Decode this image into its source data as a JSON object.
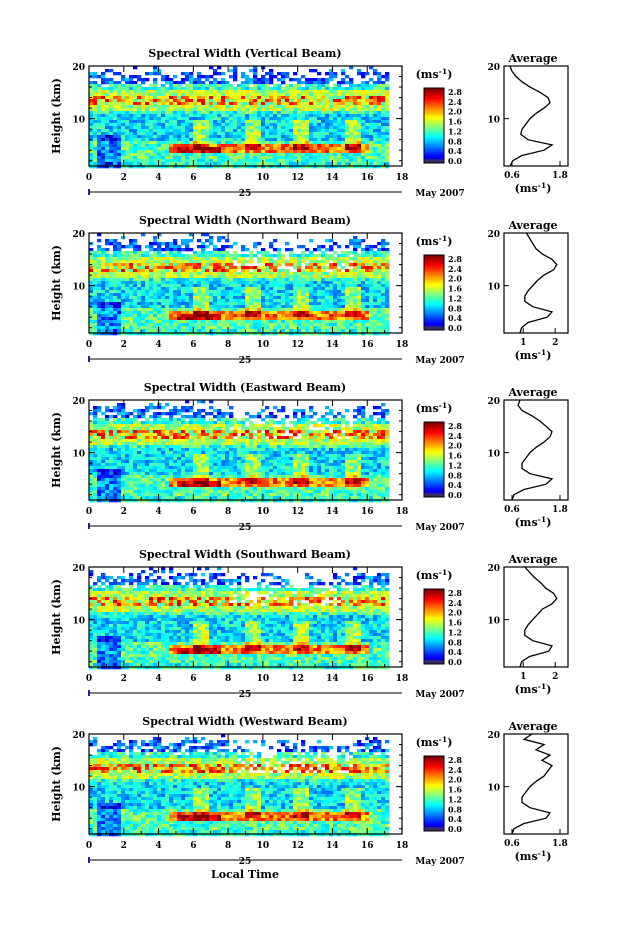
{
  "chart_data": [
    {
      "type": "heatmap",
      "title": "Spectral Width (Vertical Beam)",
      "ylabel": "Height (km)",
      "xlim": [
        0,
        18
      ],
      "ylim": [
        1,
        20
      ],
      "x_ticks": [
        "0",
        "2",
        "4",
        "6",
        "8",
        "10",
        "12",
        "14",
        "16",
        "18"
      ],
      "y_ticks": [
        "10",
        "20"
      ],
      "day_label": "25",
      "date_label": "May 2007",
      "colorbar": {
        "unit": "(ms-1)",
        "ticks": [
          "2.8",
          "2.4",
          "2.0",
          "1.6",
          "1.2",
          "0.8",
          "0.4",
          "0.0"
        ]
      },
      "average": {
        "title": "Average",
        "xlabel": "(ms-1)",
        "x_ticks": [
          "0.6",
          "1.8"
        ],
        "xlim": [
          0.4,
          2.0
        ],
        "profile": [
          [
            1,
            0.55
          ],
          [
            2,
            0.62
          ],
          [
            3,
            0.85
          ],
          [
            4,
            1.4
          ],
          [
            5,
            1.6
          ],
          [
            6,
            1.0
          ],
          [
            7,
            0.82
          ],
          [
            8,
            0.85
          ],
          [
            9,
            0.95
          ],
          [
            10,
            1.05
          ],
          [
            11,
            1.2
          ],
          [
            12,
            1.4
          ],
          [
            13,
            1.55
          ],
          [
            14,
            1.5
          ],
          [
            15,
            1.3
          ],
          [
            16,
            1.05
          ],
          [
            17,
            0.85
          ],
          [
            18,
            0.7
          ],
          [
            19,
            0.6
          ],
          [
            20,
            0.55
          ]
        ]
      }
    },
    {
      "type": "heatmap",
      "title": "Spectral Width (Northward Beam)",
      "ylabel": "Height (km)",
      "xlim": [
        0,
        18
      ],
      "ylim": [
        1,
        20
      ],
      "x_ticks": [
        "0",
        "2",
        "4",
        "6",
        "8",
        "10",
        "12",
        "14",
        "16",
        "18"
      ],
      "y_ticks": [
        "10",
        "20"
      ],
      "day_label": "25",
      "date_label": "May 2007",
      "colorbar": {
        "unit": "(ms-1)",
        "ticks": [
          "2.8",
          "2.4",
          "2.0",
          "1.6",
          "1.2",
          "0.8",
          "0.4",
          "0.0"
        ]
      },
      "average": {
        "title": "Average",
        "xlabel": "(ms-1)",
        "x_ticks": [
          "1",
          "2"
        ],
        "xlim": [
          0.4,
          2.4
        ],
        "profile": [
          [
            1,
            0.9
          ],
          [
            2,
            0.95
          ],
          [
            3,
            1.15
          ],
          [
            4,
            1.75
          ],
          [
            5,
            1.9
          ],
          [
            6,
            1.3
          ],
          [
            7,
            1.05
          ],
          [
            8,
            1.05
          ],
          [
            9,
            1.15
          ],
          [
            10,
            1.3
          ],
          [
            11,
            1.45
          ],
          [
            12,
            1.65
          ],
          [
            13,
            1.95
          ],
          [
            14,
            2.05
          ],
          [
            15,
            1.9
          ],
          [
            16,
            1.6
          ],
          [
            17,
            1.4
          ],
          [
            18,
            1.3
          ],
          [
            19,
            1.2
          ],
          [
            20,
            1.1
          ]
        ]
      }
    },
    {
      "type": "heatmap",
      "title": "Spectral Width (Eastward Beam)",
      "ylabel": "Height (km)",
      "xlim": [
        0,
        18
      ],
      "ylim": [
        1,
        20
      ],
      "x_ticks": [
        "0",
        "2",
        "4",
        "6",
        "8",
        "10",
        "12",
        "14",
        "16",
        "18"
      ],
      "y_ticks": [
        "10",
        "20"
      ],
      "day_label": "25",
      "date_label": "May 2007",
      "colorbar": {
        "unit": "(ms-1)",
        "ticks": [
          "2.8",
          "2.4",
          "2.0",
          "1.6",
          "1.2",
          "0.8",
          "0.4",
          "0.0"
        ]
      },
      "average": {
        "title": "Average",
        "xlabel": "(ms-1)",
        "x_ticks": [
          "0.6",
          "1.8"
        ],
        "xlim": [
          0.4,
          2.0
        ],
        "profile": [
          [
            1,
            0.6
          ],
          [
            2,
            0.65
          ],
          [
            3,
            0.9
          ],
          [
            4,
            1.45
          ],
          [
            5,
            1.6
          ],
          [
            6,
            1.05
          ],
          [
            7,
            0.85
          ],
          [
            8,
            0.85
          ],
          [
            9,
            0.95
          ],
          [
            10,
            1.05
          ],
          [
            11,
            1.2
          ],
          [
            12,
            1.4
          ],
          [
            13,
            1.55
          ],
          [
            14,
            1.6
          ],
          [
            15,
            1.45
          ],
          [
            16,
            1.3
          ],
          [
            17,
            1.1
          ],
          [
            18,
            0.85
          ],
          [
            19,
            0.75
          ],
          [
            20,
            0.8
          ]
        ]
      }
    },
    {
      "type": "heatmap",
      "title": "Spectral Width (Southward Beam)",
      "ylabel": "Height (km)",
      "xlim": [
        0,
        18
      ],
      "ylim": [
        1,
        20
      ],
      "x_ticks": [
        "0",
        "2",
        "4",
        "6",
        "8",
        "10",
        "12",
        "14",
        "16",
        "18"
      ],
      "y_ticks": [
        "10",
        "20"
      ],
      "day_label": "25",
      "date_label": "May 2007",
      "colorbar": {
        "unit": "(ms-1)",
        "ticks": [
          "2.8",
          "2.4",
          "2.0",
          "1.6",
          "1.2",
          "0.8",
          "0.4",
          "0.0"
        ]
      },
      "average": {
        "title": "Average",
        "xlabel": "(ms-1)",
        "x_ticks": [
          "1",
          "2"
        ],
        "xlim": [
          0.4,
          2.4
        ],
        "profile": [
          [
            1,
            0.9
          ],
          [
            2,
            0.95
          ],
          [
            3,
            1.2
          ],
          [
            4,
            1.8
          ],
          [
            5,
            1.9
          ],
          [
            6,
            1.3
          ],
          [
            7,
            1.05
          ],
          [
            8,
            1.05
          ],
          [
            9,
            1.15
          ],
          [
            10,
            1.3
          ],
          [
            11,
            1.45
          ],
          [
            12,
            1.6
          ],
          [
            13,
            1.9
          ],
          [
            14,
            2.05
          ],
          [
            15,
            1.95
          ],
          [
            16,
            1.7
          ],
          [
            17,
            1.55
          ],
          [
            18,
            1.35
          ],
          [
            19,
            1.2
          ],
          [
            20,
            1.05
          ]
        ]
      }
    },
    {
      "type": "heatmap",
      "title": "Spectral Width (Westward Beam)",
      "ylabel": "Height (km)",
      "xlim": [
        0,
        18
      ],
      "ylim": [
        1,
        20
      ],
      "x_ticks": [
        "0",
        "2",
        "4",
        "6",
        "8",
        "10",
        "12",
        "14",
        "16",
        "18"
      ],
      "y_ticks": [
        "10",
        "20"
      ],
      "day_label": "25",
      "date_label": "May 2007",
      "xlabel": "Local Time",
      "colorbar": {
        "unit": "(ms-1)",
        "ticks": [
          "2.8",
          "2.4",
          "2.0",
          "1.6",
          "1.2",
          "0.8",
          "0.4",
          "0.0"
        ]
      },
      "average": {
        "title": "Average",
        "xlabel": "(ms-1)",
        "x_ticks": [
          "0.6",
          "1.8"
        ],
        "xlim": [
          0.4,
          2.0
        ],
        "profile": [
          [
            1,
            0.6
          ],
          [
            2,
            0.65
          ],
          [
            3,
            0.9
          ],
          [
            4,
            1.45
          ],
          [
            5,
            1.55
          ],
          [
            6,
            1.05
          ],
          [
            7,
            0.85
          ],
          [
            8,
            0.85
          ],
          [
            9,
            0.95
          ],
          [
            10,
            1.05
          ],
          [
            11,
            1.2
          ],
          [
            12,
            1.4
          ],
          [
            13,
            1.5
          ],
          [
            14,
            1.6
          ],
          [
            15,
            1.35
          ],
          [
            16,
            1.55
          ],
          [
            17,
            1.2
          ],
          [
            18,
            1.4
          ],
          [
            19,
            0.9
          ],
          [
            20,
            1.1
          ]
        ]
      }
    }
  ]
}
